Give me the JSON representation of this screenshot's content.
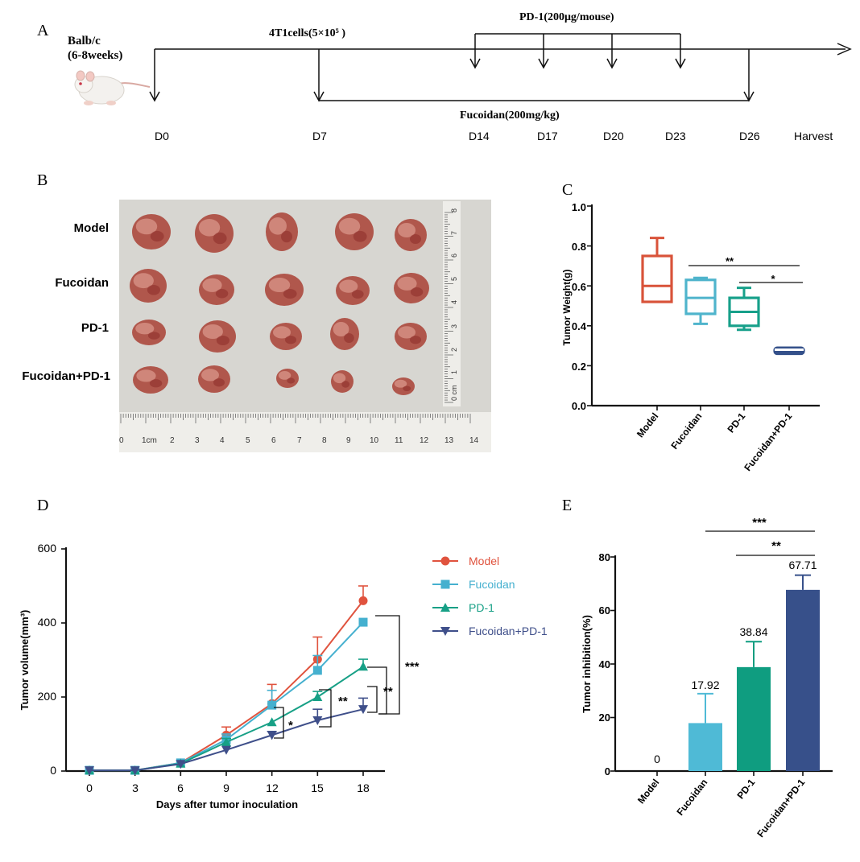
{
  "panel_labels": {
    "a": "A",
    "b": "B",
    "c": "C",
    "d": "D",
    "e": "E"
  },
  "timeline": {
    "mouse_label_line1": "Balb/c",
    "mouse_label_line2": "(6-8weeks)",
    "cells_label": "4T1cells(5×10⁵ )",
    "pd1_label": "PD-1(200μg/mouse)",
    "fucoidan_label": "Fucoidan(200mg/kg)",
    "days": [
      "D0",
      "D7",
      "D14",
      "D17",
      "D20",
      "D23",
      "D26",
      "Harvest"
    ]
  },
  "photo": {
    "row_labels": [
      "Model",
      "Fucoidan",
      "PD-1",
      "Fucoidan+PD-1"
    ],
    "ruler_h_labels": [
      "0",
      "1cm",
      "2",
      "3",
      "4",
      "5",
      "6",
      "7",
      "8",
      "9",
      "10",
      "11",
      "12",
      "13",
      "14"
    ],
    "ruler_v_labels": [
      "0 cm",
      "1",
      "2",
      "3",
      "4",
      "5",
      "6",
      "7",
      "8"
    ]
  },
  "chart_data": [
    {
      "panel": "C",
      "type": "box",
      "title": "",
      "ylabel": "Tumor Weight(g)",
      "ylim": [
        0.0,
        1.0
      ],
      "yticks": [
        "0.0",
        "0.2",
        "0.4",
        "0.6",
        "0.8",
        "1.0"
      ],
      "categories": [
        "Model",
        "Fucoidan",
        "PD-1",
        "Fucoidan+PD-1"
      ],
      "colors": [
        "#d9533a",
        "#4fb4cc",
        "#17a08a",
        "#34508a"
      ],
      "boxes": [
        {
          "min": 0.52,
          "q1": 0.52,
          "median": 0.6,
          "q3": 0.75,
          "max": 0.84
        },
        {
          "min": 0.41,
          "q1": 0.46,
          "median": 0.54,
          "q3": 0.63,
          "max": 0.64
        },
        {
          "min": 0.38,
          "q1": 0.4,
          "median": 0.47,
          "q3": 0.54,
          "max": 0.59
        },
        {
          "min": 0.26,
          "q1": 0.26,
          "median": 0.28,
          "q3": 0.29,
          "max": 0.29
        }
      ],
      "significance": [
        {
          "label": "**",
          "from": "Fucoidan",
          "to": "Fucoidan+PD-1"
        },
        {
          "label": "*",
          "from": "PD-1",
          "to": "Fucoidan+PD-1"
        }
      ]
    },
    {
      "panel": "D",
      "type": "line",
      "xlabel": "Days after tumor inoculation",
      "ylabel": "Tumor volume(mm³)",
      "x": [
        0,
        3,
        6,
        9,
        12,
        15,
        18
      ],
      "xticks": [
        "0",
        "3",
        "6",
        "9",
        "12",
        "15",
        "18"
      ],
      "yticks": [
        "0",
        "200",
        "400",
        "600"
      ],
      "ylim": [
        0,
        600
      ],
      "series": [
        {
          "name": "Model",
          "color": "#e0533e",
          "marker": "circle",
          "values": [
            2,
            2,
            22,
            97,
            182,
            302,
            460
          ],
          "errors": [
            0,
            0,
            0,
            22,
            52,
            60,
            40
          ]
        },
        {
          "name": "Fucoidan",
          "color": "#45b0cf",
          "marker": "square",
          "values": [
            2,
            2,
            22,
            85,
            178,
            272,
            402
          ],
          "errors": [
            0,
            0,
            0,
            15,
            40,
            40,
            0
          ]
        },
        {
          "name": "PD-1",
          "color": "#17a086",
          "marker": "triangle-up",
          "values": [
            2,
            2,
            20,
            78,
            132,
            200,
            282
          ],
          "errors": [
            0,
            0,
            0,
            10,
            0,
            15,
            20
          ]
        },
        {
          "name": "Fucoidan+PD-1",
          "color": "#3f4f8a",
          "marker": "triangle-down",
          "values": [
            2,
            2,
            19,
            57,
            97,
            137,
            167
          ],
          "errors": [
            0,
            0,
            0,
            0,
            10,
            30,
            30
          ]
        }
      ],
      "significance": [
        "*",
        "**",
        "**",
        "***"
      ]
    },
    {
      "panel": "E",
      "type": "bar",
      "ylabel": "Tumor inhibition(%)",
      "categories": [
        "Model",
        "Fucoidan",
        "PD-1",
        "Fucoidan+PD-1"
      ],
      "values": [
        0,
        17.92,
        38.84,
        67.71
      ],
      "value_labels": [
        "0",
        "17.92",
        "38.84",
        "67.71"
      ],
      "errors": [
        0,
        11,
        9.5,
        5.5
      ],
      "colors": [
        "#4fbad6",
        "#4fbad6",
        "#0f9d80",
        "#37508a"
      ],
      "yticks": [
        "0",
        "20",
        "40",
        "60",
        "80"
      ],
      "ylim": [
        0,
        80
      ],
      "significance": [
        {
          "label": "***",
          "from": "Fucoidan",
          "to": "Fucoidan+PD-1"
        },
        {
          "label": "**",
          "from": "PD-1",
          "to": "Fucoidan+PD-1"
        }
      ]
    }
  ]
}
